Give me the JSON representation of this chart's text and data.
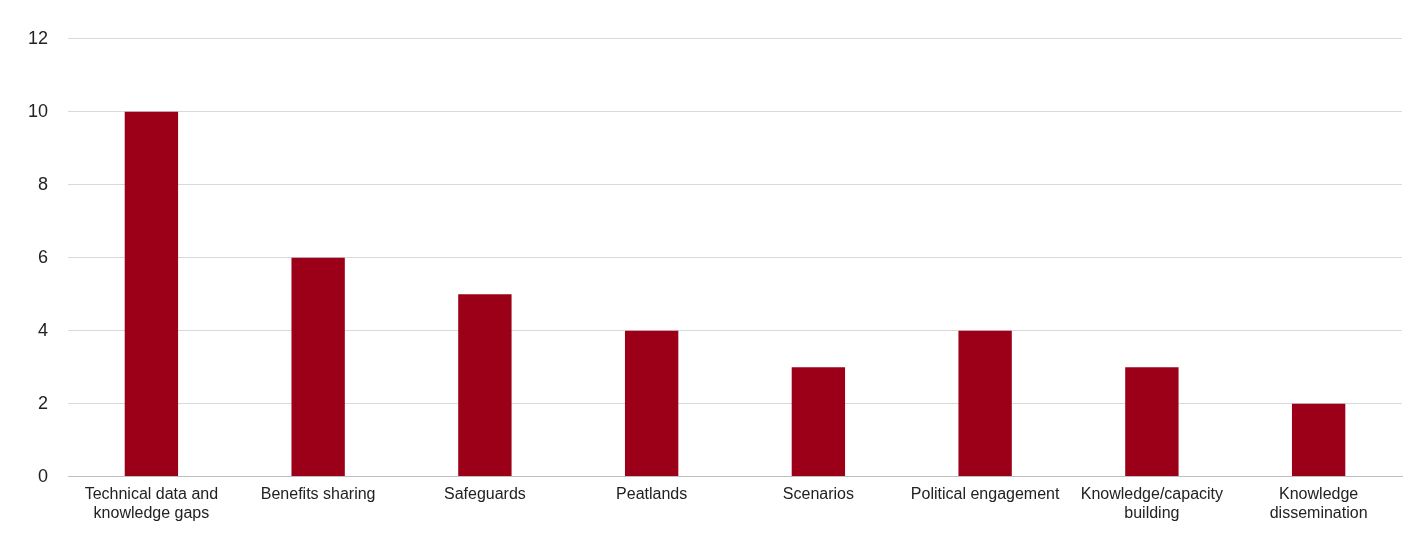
{
  "chart_data": {
    "type": "bar",
    "categories": [
      "Technical data and knowledge gaps",
      "Benefits sharing",
      "Safeguards",
      "Peatlands",
      "Scenarios",
      "Political engagement",
      "Knowledge/capacity building",
      "Knowledge dissemination"
    ],
    "values": [
      10,
      6,
      5,
      4,
      3,
      4,
      3,
      2
    ],
    "color": "#9b0018",
    "ylim": [
      0,
      12
    ],
    "yticks": [
      0,
      2,
      4,
      6,
      8,
      10,
      12
    ],
    "grid": "y",
    "legend": false
  }
}
